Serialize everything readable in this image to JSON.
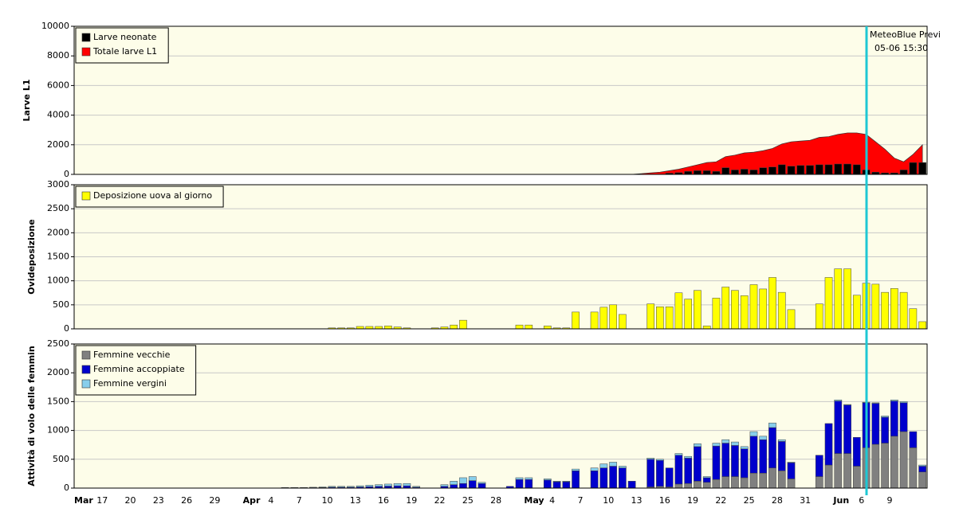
{
  "chart_data": [
    {
      "type": "bar",
      "ylabel": "Larve L1",
      "ylim": [
        0,
        10000
      ],
      "yticks": [
        0,
        2000,
        4000,
        6000,
        8000,
        10000
      ],
      "grid": true,
      "legend": "upper left",
      "series": [
        {
          "name": "Larve neonate",
          "color": "#000000",
          "mark": "bar",
          "values": [
            0,
            0,
            0,
            0,
            0,
            0,
            0,
            0,
            0,
            0,
            0,
            0,
            0,
            0,
            0,
            0,
            0,
            0,
            0,
            0,
            0,
            0,
            0,
            0,
            0,
            0,
            0,
            0,
            0,
            0,
            0,
            0,
            0,
            0,
            0,
            0,
            0,
            0,
            0,
            0,
            0,
            0,
            0,
            0,
            0,
            0,
            0,
            0,
            0,
            0,
            0,
            0,
            0,
            0,
            0,
            0,
            0,
            0,
            0,
            0,
            0,
            0,
            0,
            80,
            120,
            200,
            250,
            250,
            200,
            450,
            300,
            350,
            300,
            450,
            500,
            650,
            550,
            600,
            600,
            650,
            650,
            700,
            700,
            650,
            300,
            150,
            100,
            100,
            300,
            800,
            800
          ]
        },
        {
          "name": "Totale larve L1",
          "color": "#ff0000",
          "mark": "area",
          "values": [
            0,
            0,
            0,
            0,
            0,
            0,
            0,
            0,
            0,
            0,
            0,
            0,
            0,
            0,
            0,
            0,
            0,
            0,
            0,
            0,
            0,
            0,
            0,
            0,
            0,
            0,
            0,
            0,
            0,
            0,
            0,
            0,
            0,
            0,
            0,
            0,
            0,
            0,
            0,
            0,
            0,
            0,
            0,
            0,
            0,
            0,
            0,
            0,
            0,
            0,
            0,
            0,
            0,
            0,
            0,
            0,
            0,
            0,
            0,
            0,
            50,
            100,
            150,
            250,
            350,
            500,
            650,
            800,
            850,
            1200,
            1300,
            1450,
            1500,
            1600,
            1750,
            2050,
            2200,
            2250,
            2300,
            2500,
            2550,
            2700,
            2800,
            2800,
            2700,
            2200,
            1700,
            1100,
            850,
            1350,
            2000
          ]
        }
      ],
      "forecast_marker": {
        "label": "MeteoBlue Previ",
        "time": "05-06 15:30"
      }
    },
    {
      "type": "bar",
      "ylabel": "Ovideposizione",
      "ylim": [
        0,
        3000
      ],
      "yticks": [
        0,
        500,
        1000,
        1500,
        2000,
        2500,
        3000
      ],
      "grid": true,
      "legend": "upper left",
      "series": [
        {
          "name": "Deposizione uova al giorno",
          "color": "#ffff00",
          "mark": "bar",
          "values": [
            0,
            0,
            0,
            0,
            0,
            0,
            0,
            0,
            0,
            0,
            0,
            0,
            0,
            0,
            0,
            0,
            0,
            0,
            0,
            0,
            0,
            0,
            0,
            0,
            0,
            0,
            0,
            20,
            20,
            20,
            50,
            50,
            50,
            60,
            40,
            20,
            0,
            0,
            20,
            40,
            80,
            180,
            0,
            0,
            0,
            0,
            0,
            80,
            80,
            0,
            60,
            20,
            20,
            350,
            0,
            350,
            450,
            500,
            300,
            0,
            0,
            520,
            460,
            460,
            750,
            620,
            800,
            60,
            640,
            870,
            800,
            690,
            920,
            830,
            1070,
            760,
            400,
            0,
            0,
            520,
            1070,
            1250,
            1250,
            700,
            950,
            930,
            760,
            840,
            760,
            420,
            150
          ]
        }
      ]
    },
    {
      "type": "bar",
      "ylabel": "Attività di volo delle femmin",
      "ylim": [
        0,
        2500
      ],
      "yticks": [
        0,
        500,
        1000,
        1500,
        2000,
        2500
      ],
      "grid": true,
      "legend": "upper left",
      "stacked": true,
      "categories": [
        "Mar",
        null,
        null,
        "17",
        null,
        null,
        "20",
        null,
        null,
        "23",
        null,
        null,
        "26",
        null,
        null,
        "29",
        null,
        null,
        "Apr",
        null,
        null,
        "4",
        null,
        null,
        "7",
        null,
        null,
        "10",
        null,
        null,
        "13",
        null,
        null,
        "16",
        null,
        null,
        "19",
        null,
        null,
        "22",
        null,
        null,
        "25",
        null,
        null,
        "28",
        null,
        null,
        "May",
        null,
        null,
        "4",
        null,
        null,
        "7",
        null,
        null,
        "10",
        null,
        null,
        "13",
        null,
        null,
        "16",
        null,
        null,
        "19",
        null,
        null,
        "22",
        null,
        null,
        "25",
        null,
        null,
        "28",
        null,
        null,
        "31",
        null,
        null,
        "Jun",
        null,
        null,
        "6",
        null,
        null,
        "9",
        null,
        null,
        null
      ],
      "series": [
        {
          "name": "Femmine vecchie",
          "color": "#808080",
          "mark": "bar",
          "values": [
            0,
            0,
            0,
            0,
            0,
            0,
            0,
            0,
            0,
            0,
            0,
            0,
            0,
            0,
            0,
            0,
            0,
            0,
            0,
            0,
            0,
            0,
            0,
            0,
            0,
            0,
            0,
            0,
            0,
            0,
            0,
            0,
            0,
            0,
            0,
            0,
            0,
            0,
            0,
            0,
            0,
            0,
            0,
            0,
            0,
            0,
            0,
            0,
            0,
            0,
            0,
            0,
            0,
            0,
            0,
            0,
            0,
            0,
            0,
            0,
            0,
            20,
            30,
            20,
            70,
            80,
            120,
            100,
            150,
            200,
            200,
            180,
            260,
            260,
            350,
            300,
            160,
            0,
            0,
            200,
            400,
            600,
            600,
            380,
            700,
            760,
            780,
            900,
            980,
            700,
            280
          ]
        },
        {
          "name": "Femmine accoppiate",
          "color": "#0000cc",
          "mark": "bar",
          "values": [
            0,
            0,
            0,
            0,
            0,
            0,
            0,
            0,
            0,
            0,
            0,
            0,
            0,
            0,
            0,
            0,
            0,
            0,
            0,
            0,
            0,
            0,
            5,
            5,
            5,
            7,
            10,
            15,
            15,
            15,
            20,
            25,
            30,
            35,
            40,
            40,
            15,
            0,
            0,
            30,
            60,
            80,
            130,
            80,
            0,
            0,
            30,
            150,
            150,
            0,
            140,
            110,
            110,
            300,
            0,
            300,
            350,
            380,
            350,
            120,
            0,
            480,
            450,
            330,
            500,
            440,
            600,
            80,
            580,
            580,
            540,
            500,
            640,
            580,
            700,
            510,
            280,
            0,
            0,
            370,
            720,
            910,
            840,
            500,
            780,
            710,
            450,
            610,
            500,
            280,
            100
          ]
        },
        {
          "name": "Femmine vergini",
          "color": "#87ceeb",
          "mark": "bar",
          "values": [
            0,
            0,
            0,
            0,
            0,
            0,
            0,
            0,
            0,
            0,
            0,
            0,
            0,
            0,
            0,
            0,
            0,
            0,
            0,
            0,
            0,
            0,
            5,
            5,
            5,
            8,
            10,
            15,
            15,
            15,
            20,
            25,
            30,
            35,
            40,
            40,
            15,
            0,
            0,
            30,
            60,
            100,
            70,
            20,
            0,
            0,
            0,
            30,
            30,
            0,
            20,
            10,
            10,
            30,
            0,
            50,
            70,
            70,
            30,
            0,
            0,
            20,
            20,
            0,
            30,
            30,
            50,
            20,
            50,
            60,
            60,
            40,
            80,
            60,
            80,
            30,
            10,
            0,
            0,
            0,
            0,
            20,
            10,
            0,
            10,
            10,
            20,
            20,
            20,
            0,
            20
          ]
        }
      ]
    }
  ]
}
